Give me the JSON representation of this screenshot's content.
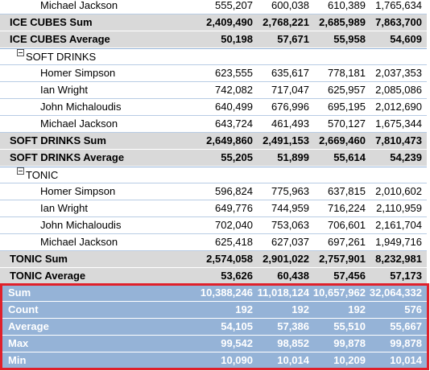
{
  "rows": [
    {
      "label": "Michael Jackson",
      "values": [
        "555,207",
        "600,038",
        "610,389",
        "1,765,634"
      ]
    },
    {
      "label": "ICE CUBES Sum",
      "values": [
        "2,409,490",
        "2,768,221",
        "2,685,989",
        "7,863,700"
      ]
    },
    {
      "label": "ICE CUBES Average",
      "values": [
        "50,198",
        "57,671",
        "55,958",
        "54,609"
      ]
    },
    {
      "label": "SOFT DRINKS"
    },
    {
      "label": "Homer Simpson",
      "values": [
        "623,555",
        "635,617",
        "778,181",
        "2,037,353"
      ]
    },
    {
      "label": "Ian Wright",
      "values": [
        "742,082",
        "717,047",
        "625,957",
        "2,085,086"
      ]
    },
    {
      "label": "John Michaloudis",
      "values": [
        "640,499",
        "676,996",
        "695,195",
        "2,012,690"
      ]
    },
    {
      "label": "Michael Jackson",
      "values": [
        "643,724",
        "461,493",
        "570,127",
        "1,675,344"
      ]
    },
    {
      "label": "SOFT DRINKS Sum",
      "values": [
        "2,649,860",
        "2,491,153",
        "2,669,460",
        "7,810,473"
      ]
    },
    {
      "label": "SOFT DRINKS Average",
      "values": [
        "55,205",
        "51,899",
        "55,614",
        "54,239"
      ]
    },
    {
      "label": "TONIC"
    },
    {
      "label": "Homer Simpson",
      "values": [
        "596,824",
        "775,963",
        "637,815",
        "2,010,602"
      ]
    },
    {
      "label": "Ian Wright",
      "values": [
        "649,776",
        "744,959",
        "716,224",
        "2,110,959"
      ]
    },
    {
      "label": "John Michaloudis",
      "values": [
        "702,040",
        "753,063",
        "706,601",
        "2,161,704"
      ]
    },
    {
      "label": "Michael Jackson",
      "values": [
        "625,418",
        "627,037",
        "697,261",
        "1,949,716"
      ]
    },
    {
      "label": "TONIC Sum",
      "values": [
        "2,574,058",
        "2,901,022",
        "2,757,901",
        "8,232,981"
      ]
    },
    {
      "label": "TONIC Average",
      "values": [
        "53,626",
        "60,438",
        "57,456",
        "57,173"
      ]
    }
  ],
  "summary": [
    {
      "label": "Sum",
      "values": [
        "10,388,246",
        "11,018,124",
        "10,657,962",
        "32,064,332"
      ]
    },
    {
      "label": "Count",
      "values": [
        "192",
        "192",
        "192",
        "576"
      ]
    },
    {
      "label": "Average",
      "values": [
        "54,105",
        "57,386",
        "55,510",
        "55,667"
      ]
    },
    {
      "label": "Max",
      "values": [
        "99,542",
        "98,852",
        "99,878",
        "99,878"
      ]
    },
    {
      "label": "Min",
      "values": [
        "10,090",
        "10,014",
        "10,209",
        "10,014"
      ]
    }
  ]
}
